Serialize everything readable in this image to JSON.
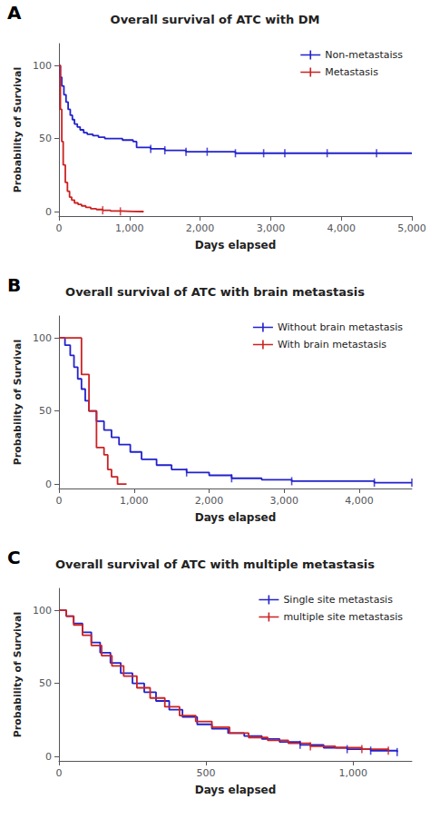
{
  "chart_data": [
    {
      "type": "step",
      "title": "Overall survival of ATC with DM",
      "annotations": [
        "A"
      ],
      "xlabel": "Days elapsed",
      "ylabel": "Probability of Survival",
      "xlim": [
        0,
        5000
      ],
      "ylim": [
        -3,
        115
      ],
      "xticks": [
        0,
        1000,
        2000,
        3000,
        4000,
        5000
      ],
      "yticks": [
        0,
        50,
        100
      ],
      "grid": false,
      "legend": "upper right",
      "series": [
        {
          "name": "Non-metastaiss",
          "color": "#2222CC",
          "x": [
            0,
            20,
            40,
            70,
            100,
            130,
            160,
            190,
            220,
            260,
            300,
            350,
            400,
            480,
            560,
            650,
            750,
            900,
            1050,
            1100,
            1300,
            1500,
            1800,
            2100,
            2300,
            2500,
            2700,
            2900,
            3200,
            3500,
            3800,
            4100,
            4500,
            5000
          ],
          "values": [
            100,
            92,
            86,
            80,
            75,
            70,
            66,
            63,
            60,
            58,
            56,
            54,
            53,
            52,
            51,
            50,
            50,
            49,
            48,
            44,
            43,
            42,
            41,
            41,
            41,
            40,
            40,
            40,
            40,
            40,
            40,
            40,
            40,
            40
          ],
          "censor_x": [
            1300,
            1500,
            1800,
            2100,
            2500,
            2900,
            3200,
            3800,
            4500
          ],
          "censor_y": [
            43,
            42,
            41,
            41,
            40,
            40,
            40,
            40,
            40
          ]
        },
        {
          "name": "Metastasis",
          "color": "#CC2222",
          "x": [
            0,
            20,
            40,
            60,
            90,
            120,
            150,
            180,
            220,
            270,
            320,
            380,
            450,
            530,
            620,
            730,
            870,
            1050,
            1200
          ],
          "values": [
            100,
            70,
            48,
            32,
            20,
            14,
            10,
            8,
            6,
            5,
            4,
            3,
            2,
            1.5,
            1,
            0.5,
            0.2,
            0.1,
            0
          ],
          "censor_x": [
            620,
            870
          ],
          "censor_y": [
            1,
            0.2
          ]
        }
      ]
    },
    {
      "type": "step",
      "title": "Overall survival of ATC with brain metastasis",
      "annotations": [
        "B"
      ],
      "xlabel": "Days elapsed",
      "ylabel": "Probability of Survival",
      "xlim": [
        0,
        4700
      ],
      "ylim": [
        -3,
        115
      ],
      "xticks": [
        0,
        1000,
        2000,
        3000,
        4000
      ],
      "yticks": [
        0,
        50,
        100
      ],
      "grid": false,
      "legend": "upper right",
      "series": [
        {
          "name": "Without brain metastasis",
          "color": "#2222CC",
          "x": [
            0,
            30,
            80,
            150,
            200,
            250,
            300,
            350,
            400,
            500,
            600,
            700,
            800,
            950,
            1100,
            1300,
            1500,
            1700,
            2000,
            2300,
            2700,
            3100,
            3600,
            4200,
            4700
          ],
          "values": [
            100,
            100,
            95,
            88,
            80,
            72,
            65,
            57,
            50,
            43,
            37,
            32,
            27,
            22,
            17,
            13,
            10,
            8,
            6,
            4,
            3,
            2,
            2,
            1,
            1
          ],
          "censor_x": [
            1700,
            2300,
            3100,
            4200,
            4700
          ],
          "censor_y": [
            8,
            4,
            2,
            1,
            1
          ]
        },
        {
          "name": "With brain metastasis",
          "color": "#CC2222",
          "x": [
            0,
            200,
            300,
            400,
            500,
            600,
            650,
            700,
            780,
            900
          ],
          "values": [
            100,
            100,
            75,
            50,
            25,
            20,
            10,
            5,
            0,
            0
          ],
          "censor_x": [],
          "censor_y": []
        }
      ]
    },
    {
      "type": "step",
      "title": "Overall survival of ATC with multiple metastasis",
      "annotations": [
        "C"
      ],
      "xlabel": "Days elapsed",
      "ylabel": "Probability of Survival",
      "xlim": [
        0,
        1200
      ],
      "ylim": [
        -3,
        115
      ],
      "xticks": [
        0,
        500,
        1000
      ],
      "yticks": [
        0,
        50,
        100
      ],
      "grid": false,
      "legend": "upper right",
      "series": [
        {
          "name": "Single site metastasis",
          "color": "#2222CC",
          "x": [
            0,
            25,
            50,
            80,
            110,
            140,
            175,
            210,
            250,
            290,
            330,
            375,
            420,
            470,
            520,
            575,
            630,
            690,
            750,
            820,
            900,
            980,
            1060,
            1150
          ],
          "values": [
            100,
            96,
            91,
            85,
            78,
            71,
            64,
            57,
            50,
            44,
            38,
            32,
            27,
            22,
            19,
            16,
            14,
            12,
            10,
            8,
            6,
            5,
            4,
            3
          ],
          "censor_x": [
            820,
            980,
            1060,
            1150
          ],
          "censor_y": [
            8,
            5,
            4,
            3
          ]
        },
        {
          "name": "multiple site metastasis",
          "color": "#CC2222",
          "x": [
            0,
            25,
            50,
            80,
            110,
            145,
            180,
            220,
            265,
            310,
            360,
            410,
            465,
            520,
            580,
            645,
            710,
            780,
            855,
            940,
            1030,
            1120
          ],
          "values": [
            100,
            96,
            90,
            83,
            76,
            69,
            62,
            55,
            47,
            40,
            34,
            28,
            24,
            20,
            16,
            13,
            11,
            9,
            7,
            6,
            5,
            4
          ],
          "censor_x": [
            855,
            1030,
            1120
          ],
          "censor_y": [
            7,
            5,
            4
          ]
        }
      ]
    }
  ]
}
